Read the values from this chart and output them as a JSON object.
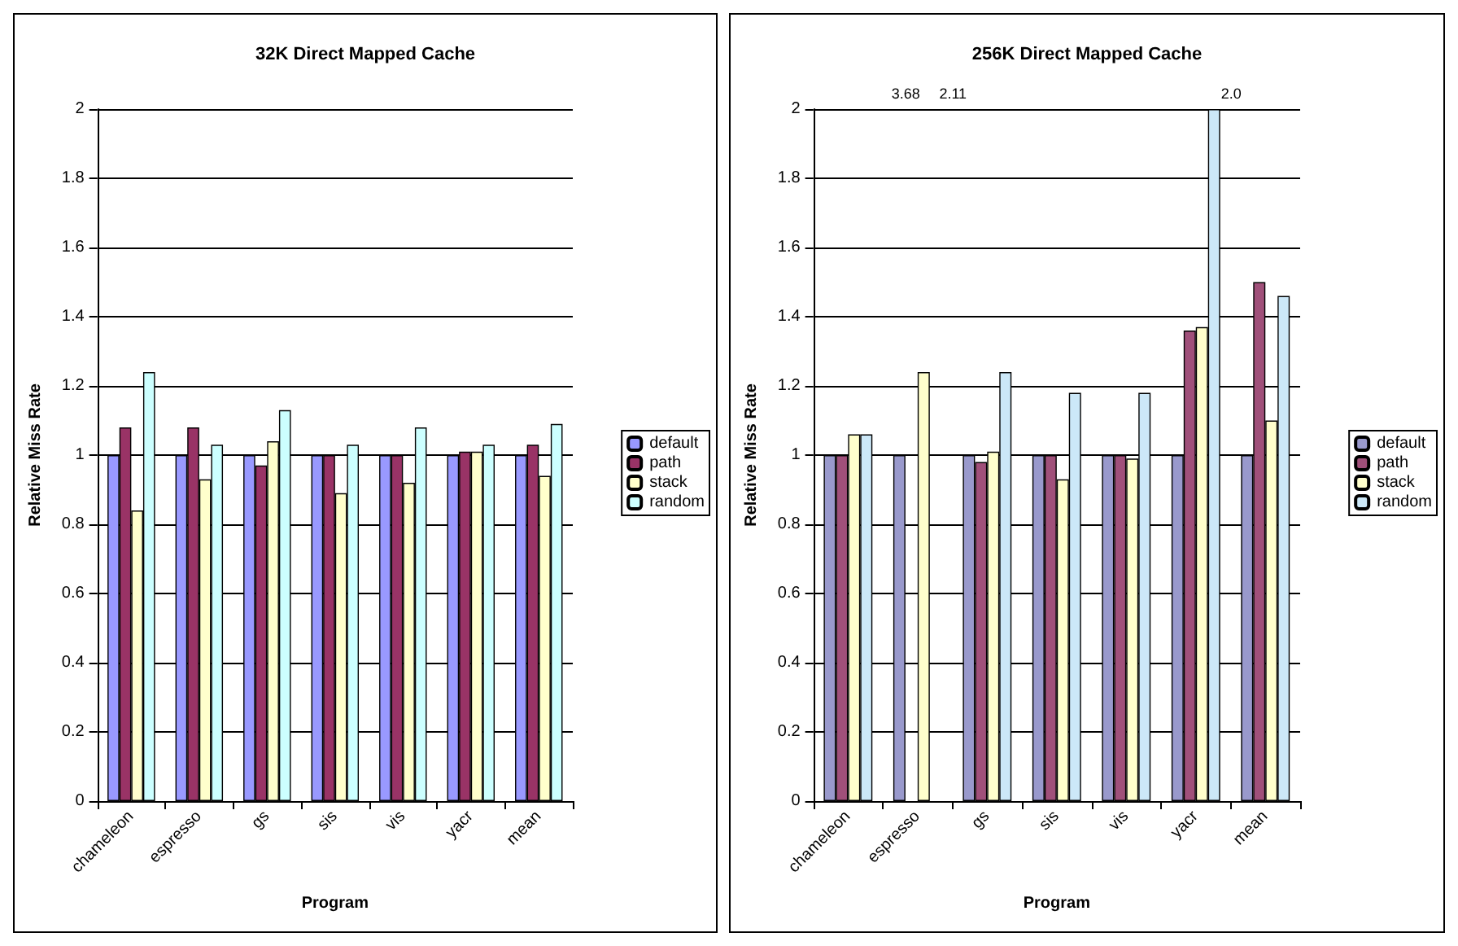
{
  "chart_data": [
    {
      "type": "bar",
      "title": "32K Direct Mapped Cache",
      "xlabel": "Program",
      "ylabel": "Relative Miss Rate",
      "categories": [
        "chameleon",
        "espresso",
        "gs",
        "sis",
        "vis",
        "yacr",
        "mean"
      ],
      "series": [
        {
          "name": "default",
          "color": "#9999ff",
          "values": [
            1,
            1,
            1,
            1,
            1,
            1,
            1
          ]
        },
        {
          "name": "path",
          "color": "#993366",
          "values": [
            1.08,
            1.08,
            0.97,
            1.0,
            1.0,
            1.01,
            1.03
          ]
        },
        {
          "name": "stack",
          "color": "#ffffcc",
          "values": [
            0.84,
            0.93,
            1.04,
            0.89,
            0.92,
            1.01,
            0.94
          ]
        },
        {
          "name": "random",
          "color": "#ccffff",
          "values": [
            1.24,
            1.03,
            1.13,
            1.03,
            1.08,
            1.03,
            1.09
          ]
        }
      ],
      "ylim": [
        0,
        2
      ],
      "yticks": [
        0,
        0.2,
        0.4,
        0.6,
        0.8,
        1,
        1.2,
        1.4,
        1.6,
        1.8,
        2
      ],
      "grid": "y",
      "legend": "right"
    },
    {
      "type": "bar",
      "title": "256K Direct Mapped Cache",
      "xlabel": "Program",
      "ylabel": "Relative Miss Rate",
      "categories": [
        "chameleon",
        "espresso",
        "gs",
        "sis",
        "vis",
        "yacr",
        "mean"
      ],
      "series": [
        {
          "name": "default",
          "color": "#9999cc",
          "values": [
            1,
            1,
            1,
            1,
            1,
            1,
            1
          ]
        },
        {
          "name": "path",
          "color": "#a0507a",
          "values": [
            1.0,
            null,
            0.98,
            1.0,
            1.0,
            1.36,
            1.5
          ],
          "value_labels": [
            null,
            "3.68",
            null,
            null,
            null,
            null,
            null
          ]
        },
        {
          "name": "stack",
          "color": "#ffffcc",
          "values": [
            1.06,
            1.24,
            1.01,
            0.93,
            0.99,
            1.37,
            1.1
          ]
        },
        {
          "name": "random",
          "color": "#cce8f8",
          "values": [
            1.06,
            null,
            1.24,
            1.18,
            1.18,
            2.0,
            1.46
          ],
          "value_labels": [
            null,
            "2.11",
            null,
            null,
            null,
            "2.0",
            null
          ]
        }
      ],
      "ylim": [
        0,
        2
      ],
      "yticks": [
        0,
        0.2,
        0.4,
        0.6,
        0.8,
        1,
        1.2,
        1.4,
        1.6,
        1.8,
        2
      ],
      "grid": "y",
      "legend": "right"
    }
  ]
}
